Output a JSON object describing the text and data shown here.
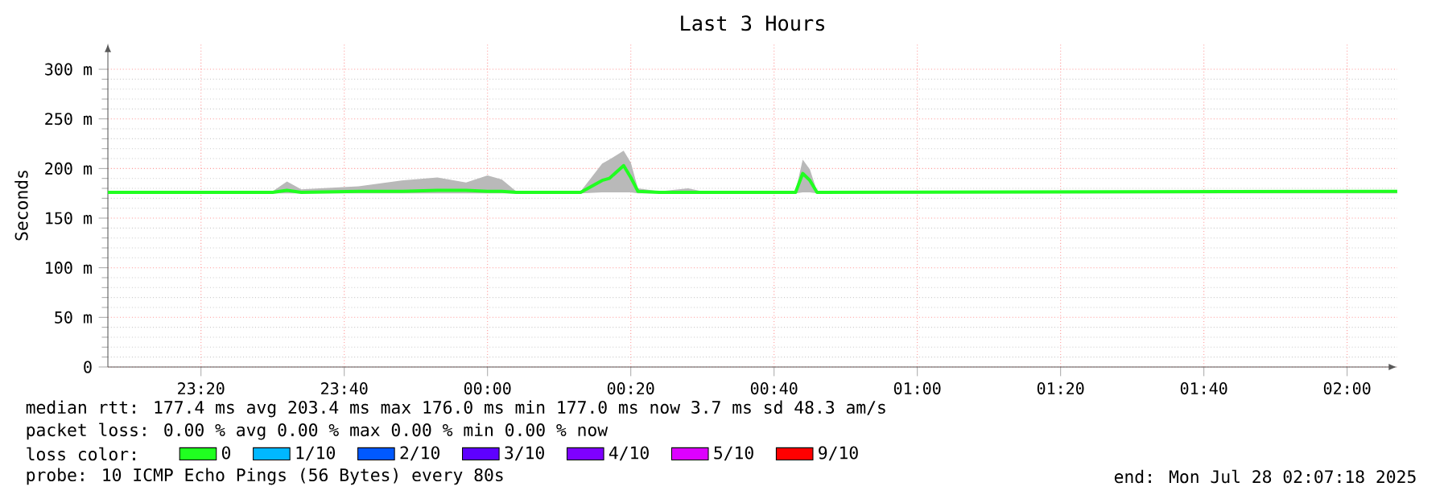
{
  "chart_data": {
    "type": "line",
    "title": "Last 3 Hours",
    "ylabel": "Seconds",
    "legend_title": "loss color:",
    "series": [
      {
        "name": "0",
        "color": "#20ff20",
        "x": [
          "2025-07-27T23:07",
          "2025-07-27T23:30",
          "2025-07-27T23:32",
          "2025-07-27T23:34",
          "2025-07-27T23:42",
          "2025-07-27T23:48",
          "2025-07-27T23:53",
          "2025-07-27T23:57",
          "2025-07-28T00:00",
          "2025-07-28T00:02",
          "2025-07-28T00:04",
          "2025-07-28T00:13",
          "2025-07-28T00:16",
          "2025-07-28T00:17",
          "2025-07-28T00:19",
          "2025-07-28T00:20",
          "2025-07-28T00:21",
          "2025-07-28T00:24",
          "2025-07-28T00:28",
          "2025-07-28T00:30",
          "2025-07-28T00:43",
          "2025-07-28T00:44",
          "2025-07-28T00:45",
          "2025-07-28T00:46",
          "2025-07-28T02:07"
        ],
        "values": [
          176,
          176,
          178,
          176,
          177,
          177,
          178,
          178,
          177,
          177,
          176,
          176,
          188,
          190,
          203,
          191,
          177,
          176,
          176,
          176,
          176,
          195,
          188,
          176,
          177
        ],
        "lower": [
          175,
          175,
          175,
          175,
          175,
          175,
          175,
          175,
          175,
          175,
          175,
          175,
          176,
          176,
          176,
          176,
          175,
          175,
          175,
          175,
          175,
          176,
          176,
          175,
          175
        ],
        "upper": [
          177,
          177,
          187,
          179,
          182,
          188,
          191,
          186,
          193,
          189,
          177,
          177,
          205,
          209,
          218,
          206,
          180,
          177,
          180,
          177,
          177,
          209,
          199,
          177,
          177
        ]
      },
      {
        "name": "1/10",
        "color": "#00b8ff"
      },
      {
        "name": "2/10",
        "color": "#0059ff"
      },
      {
        "name": "3/10",
        "color": "#5e00ff"
      },
      {
        "name": "4/10",
        "color": "#7e00ff"
      },
      {
        "name": "5/10",
        "color": "#dd00ff"
      },
      {
        "name": "9/10",
        "color": "#ff0000"
      }
    ],
    "xlim": [
      "2025-07-27T23:07",
      "2025-07-28T02:07"
    ],
    "ylim": [
      0,
      326
    ],
    "xticks": [
      {
        "value": "2025-07-27T23:20",
        "label": "23:20"
      },
      {
        "value": "2025-07-27T23:40",
        "label": "23:40"
      },
      {
        "value": "2025-07-28T00:00",
        "label": "00:00"
      },
      {
        "value": "2025-07-28T00:20",
        "label": "00:20"
      },
      {
        "value": "2025-07-28T00:40",
        "label": "00:40"
      },
      {
        "value": "2025-07-28T01:00",
        "label": "01:00"
      },
      {
        "value": "2025-07-28T01:20",
        "label": "01:20"
      },
      {
        "value": "2025-07-28T01:40",
        "label": "01:40"
      },
      {
        "value": "2025-07-28T02:00",
        "label": "02:00"
      }
    ],
    "yticks": [
      0,
      {
        "value": 50,
        "label": "50 m"
      },
      {
        "value": 100,
        "label": "100 m"
      },
      {
        "value": 150,
        "label": "150 m"
      },
      {
        "value": 200,
        "label": "200 m"
      },
      {
        "value": 250,
        "label": "250 m"
      },
      {
        "value": 300,
        "label": "300 m"
      }
    ],
    "grid": true,
    "legend": "bottom",
    "marker": "none",
    "line_style": "solid",
    "annotations": [
      "median rtt: 177.4 ms avg 203.4 ms max 176.0 ms min 177.0 ms now 3.7 ms sd 48.3 am/s",
      "packet loss: 0.00 % avg 0.00 % max 0.00 % min 0.00 % now",
      "probe: 10 ICMP Echo Pings (56 Bytes) every 80s",
      "end: Mon Jul 28 02:07:18 2025"
    ]
  }
}
